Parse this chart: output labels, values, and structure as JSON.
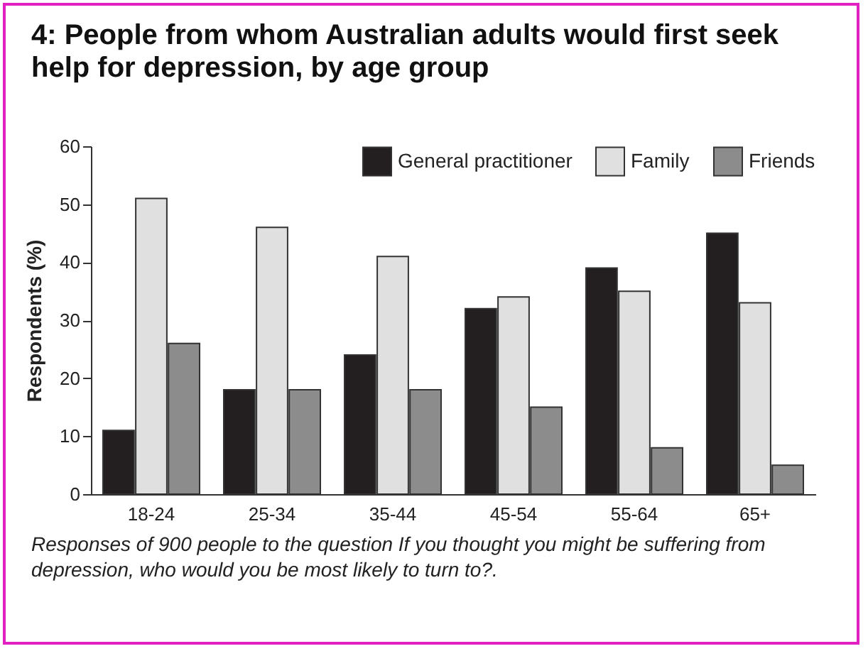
{
  "chart_data": {
    "type": "bar",
    "title": "4: People from whom Australian adults would first seek help for depression, by age group",
    "ylabel": "Respondents (%)",
    "categories": [
      "18-24",
      "25-34",
      "35-44",
      "45-54",
      "55-64",
      "65+"
    ],
    "series": [
      {
        "name": "General practitioner",
        "color": "#231f20",
        "values": [
          11,
          18,
          24,
          32,
          39,
          45
        ]
      },
      {
        "name": "Family",
        "color": "#e0e0e0",
        "values": [
          51,
          46,
          41,
          34,
          35,
          33
        ]
      },
      {
        "name": "Friends",
        "color": "#8c8c8c",
        "values": [
          26,
          18,
          18,
          15,
          8,
          5
        ]
      }
    ],
    "ylim": [
      0,
      60
    ],
    "yticks": [
      0,
      10,
      20,
      30,
      40,
      50,
      60
    ],
    "grid": false,
    "legend": "top right",
    "annotations": [
      "Responses of 900 people to the question If you thought you might be suffering from depression, who would you be most likely to turn to?."
    ]
  }
}
